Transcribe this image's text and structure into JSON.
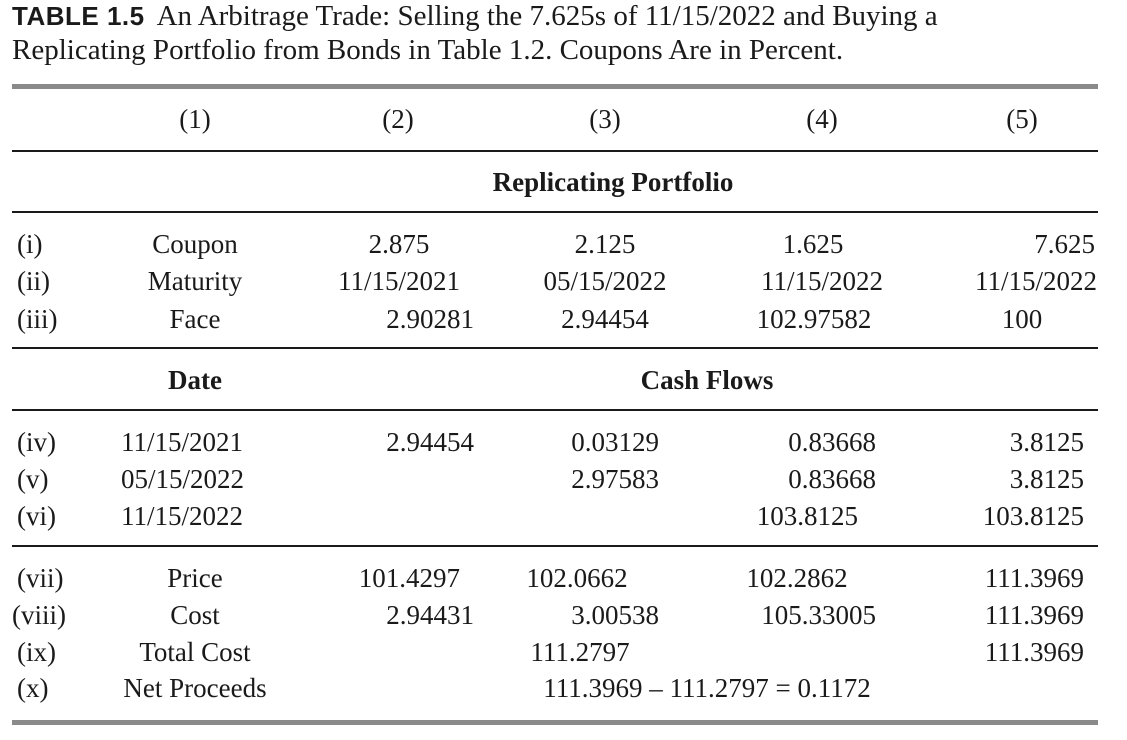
{
  "caption": {
    "tag": "TABLE 1.5",
    "line1": "An Arbitrage Trade: Selling the 7.625s of 11/15/2022 and Buying a",
    "line2": "Replicating Portfolio from Bonds in Table 1.2. Coupons Are in Percent."
  },
  "columns": [
    "(1)",
    "(2)",
    "(3)",
    "(4)",
    "(5)"
  ],
  "sections": {
    "portfolio_header": "Replicating Portfolio",
    "date_header": "Date",
    "cashflows_header": "Cash Flows"
  },
  "bond_rows": [
    {
      "num": "(i)",
      "label": "Coupon",
      "c2": "2.875",
      "c3": "2.125",
      "c4": "1.625",
      "c5": "7.625"
    },
    {
      "num": "(ii)",
      "label": "Maturity",
      "c2": "11/15/2021",
      "c3": "05/15/2022",
      "c4": "11/15/2022",
      "c5": "11/15/2022"
    },
    {
      "num": "(iii)",
      "label": "Face",
      "c2": "2.90281",
      "c3": "2.94454",
      "c4": "102.97582",
      "c5": "100"
    }
  ],
  "cash_rows": [
    {
      "num": "(iv)",
      "date": "11/15/2021",
      "c2": "2.94454",
      "c3": "0.03129",
      "c4": "0.83668",
      "c5": "3.8125"
    },
    {
      "num": "(v)",
      "date": "05/15/2022",
      "c2": "",
      "c3": "2.97583",
      "c4": "0.83668",
      "c5": "3.8125"
    },
    {
      "num": "(vi)",
      "date": "11/15/2022",
      "c2": "",
      "c3": "",
      "c4": "103.8125",
      "c5": "103.8125"
    }
  ],
  "summary_rows": [
    {
      "num": "(vii)",
      "label": "Price",
      "c2": "101.4297",
      "c3": "102.0662",
      "c4": "102.2862",
      "c5": "111.3969"
    },
    {
      "num": "(viii)",
      "label": "Cost",
      "c2": "2.94431",
      "c3": "3.00538",
      "c4": "105.33005",
      "c5": "111.3969"
    },
    {
      "num": "(ix)",
      "label": "Total Cost",
      "mid": "111.2797",
      "c5": "111.3969"
    },
    {
      "num": "(x)",
      "label": "Net Proceeds",
      "mid": "111.3969 – 111.2797 = 0.1172"
    }
  ]
}
